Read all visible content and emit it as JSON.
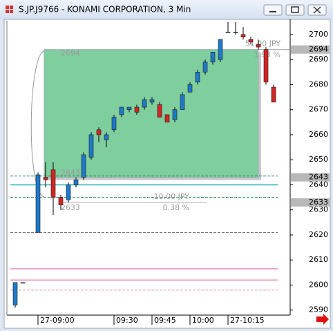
{
  "window": {
    "title": "S.JP.J9766 - KONAMI CORPORATION, 3 Min"
  },
  "chart_data": {
    "type": "candlestick",
    "categories": [
      null,
      null,
      null,
      "27-09:00",
      null,
      null,
      null,
      null,
      null,
      null,
      null,
      null,
      null,
      "09:30",
      null,
      null,
      null,
      null,
      "09:45",
      null,
      null,
      null,
      null,
      "10:00",
      null,
      null,
      null,
      null,
      "27-10:15",
      null,
      null,
      null,
      null,
      null,
      null
    ],
    "open": [
      2592,
      2601,
      null,
      2621,
      2643,
      2646,
      2635,
      2634,
      2640,
      2643,
      2651,
      2662,
      2658,
      2662,
      2668,
      2670,
      2671,
      2671,
      2673,
      2672,
      2668,
      2666,
      2670,
      2677,
      2681,
      2685,
      2689,
      2690,
      2701,
      2701,
      2700,
      2698,
      2696,
      2694,
      2679
    ],
    "high": [
      2601,
      2601,
      null,
      2645,
      2649,
      2649,
      2636,
      2641,
      2643,
      2653,
      2661,
      2663,
      2661,
      2668,
      2671,
      2671,
      2672,
      2675,
      2675,
      2673,
      2668,
      2671,
      2677,
      2681,
      2686,
      2690,
      2693,
      2698,
      2705,
      2705,
      2703,
      2699,
      2698,
      2695,
      2680
    ],
    "low": [
      2591,
      2601,
      null,
      2621,
      2639,
      2628,
      2630,
      2633,
      2639,
      2642,
      2650,
      2657,
      2655,
      2661,
      2667,
      2669,
      2668,
      2670,
      2672,
      2667,
      2665,
      2665,
      2670,
      2677,
      2680,
      2684,
      2688,
      2689,
      2701,
      2700,
      2698,
      2696,
      2694,
      2680,
      2673
    ],
    "close": [
      2601,
      2601,
      null,
      2644,
      2642,
      2635,
      2632,
      2640,
      2642,
      2652,
      2660,
      2660,
      2660,
      2667,
      2671,
      2671,
      2669,
      2674,
      2674,
      2667,
      2665,
      2670,
      2676,
      2680,
      2685,
      2689,
      2693,
      2698,
      2701,
      2701,
      2699,
      2697,
      2695,
      2681,
      2673
    ],
    "up_color": "#1f78c8",
    "down_color": "#d42424",
    "ylim": [
      2588,
      2705.5
    ],
    "yticks": [
      2590,
      2600,
      2610,
      2620,
      2630,
      2640,
      2650,
      2660,
      2670,
      2680,
      2690,
      2700
    ],
    "price_markers": [
      2694,
      2643,
      2633
    ],
    "range_box": {
      "top": 2694,
      "bottom": 2643,
      "change": "51.00 JPY",
      "change_pct": "1.93 %",
      "color": "#7fcf9e"
    },
    "measure": {
      "bottom": 2633,
      "change": "10.00 JPY",
      "change_pct": "0.38 %"
    },
    "hlines": [
      {
        "value": 2643.5,
        "color": "#2e8b57",
        "style": "dashed"
      },
      {
        "value": 2635,
        "color": "#2e8b57",
        "style": "dashed"
      },
      {
        "value": 2640,
        "color": "#20b2b2",
        "style": "solid"
      },
      {
        "value": 2621,
        "color": "#666666",
        "style": "dashed"
      },
      {
        "value": 2606.5,
        "color": "#e890b8",
        "style": "solid"
      },
      {
        "value": 2602,
        "color": "#e890b8",
        "style": "solid"
      },
      {
        "value": 2598,
        "color": "#e890b8",
        "style": "dashed"
      }
    ]
  }
}
